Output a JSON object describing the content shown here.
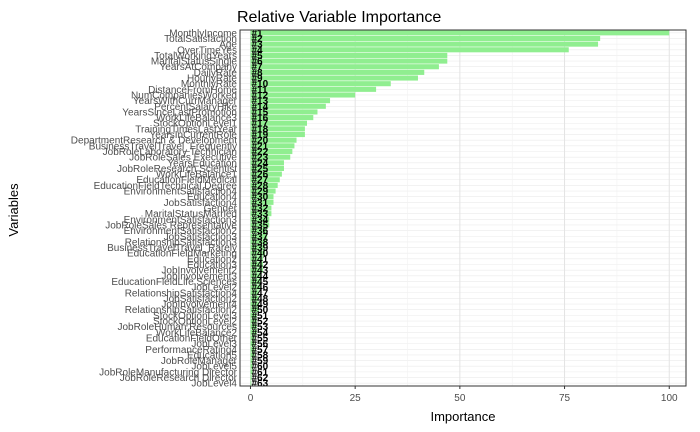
{
  "chart_data": {
    "type": "bar",
    "orientation": "horizontal",
    "title": "Relative Variable Importance",
    "xlabel": "Importance",
    "ylabel": "Variables",
    "xlim": [
      -2.5,
      104
    ],
    "xticks": [
      0,
      25,
      50,
      75,
      100
    ],
    "grid": true,
    "bar_color": "#90ee90",
    "categories": [
      "MonthlyIncome",
      "TotalSatisfaction",
      "Age",
      "OverTimeYes",
      "TotalWorkingYears",
      "MaritalStatusSingle",
      "YearsAtCompany",
      "DailyRate",
      "HourlyRate",
      "MonthlyRate",
      "DistanceFromHome",
      "NumCompaniesWorked",
      "YearsWithCurrManager",
      "PercentSalaryHike",
      "YearsSinceLastPromotion",
      "WorkLifeBalance3",
      "StockOptionLevel1",
      "TrainingTimesLastYear",
      "YearsInCurrentRole",
      "DepartmentResearch & Development",
      "BusinessTravelTravel_Frequently",
      "JobRoleLaboratory Technician",
      "JobRoleSales Executive",
      "YearsEducation",
      "JobRoleResearch Scientist",
      "WorkLifeBalance1",
      "EducationFieldMedical",
      "EducationFieldTechnical Degree",
      "EnvironmentSatisfaction4",
      "Education4",
      "JobSatisfaction4",
      "Gender",
      "MaritalStatusMarried",
      "EnvironmentSatisfaction3",
      "JobRoleSales Representative",
      "EnvironmentSatisfaction2",
      "JobSatisfaction3",
      "RelationshipSatisfaction3",
      "BusinessTravelTravel_Rarely",
      "EducationFieldMarketing",
      "Education2",
      "Education3",
      "JobInvolvement2",
      "JobInvolvement3",
      "EducationFieldLife Sciences",
      "JobLevel2",
      "RelationshipSatisfaction4",
      "JobSatisfaction2",
      "JobInvolvement4",
      "RelationshipSatisfaction2",
      "StockOptionLevel3",
      "StockOptionLevel2",
      "JobRoleHuman Resources",
      "WorkLifeBalance2",
      "EducationFieldOther",
      "JobLevel3",
      "PerformanceRating4",
      "Education5",
      "JobRoleManager",
      "JobLevel5",
      "JobRoleManufacturing Director",
      "JobRoleResearch Director",
      "JobLevel4"
    ],
    "values": [
      100,
      83.5,
      83,
      76,
      47,
      47,
      45,
      41.5,
      40,
      33.5,
      30,
      25,
      19,
      18,
      16,
      15,
      13.5,
      13,
      13,
      11,
      10.5,
      10,
      9.5,
      8,
      8,
      7.5,
      7,
      6.5,
      6,
      5.5,
      5.5,
      5,
      5,
      4.5,
      4.5,
      4,
      4,
      4,
      3.5,
      3.5,
      3,
      3,
      3,
      2.5,
      2.5,
      2.5,
      2,
      2,
      2,
      2,
      1.5,
      1.5,
      1.5,
      1.5,
      1,
      1,
      1,
      1,
      0.5,
      0.5,
      0.5,
      0.3,
      0.2
    ],
    "rank_labels": [
      "#1",
      "#2",
      "#3",
      "#4",
      "#5",
      "#6",
      "#7",
      "#8",
      "#9",
      "#10",
      "#11",
      "#12",
      "#13",
      "#14",
      "#15",
      "#16",
      "#17",
      "#18",
      "#19",
      "#20",
      "#21",
      "#22",
      "#23",
      "#24",
      "#25",
      "#26",
      "#27",
      "#28",
      "#29",
      "#30",
      "#31",
      "#32",
      "#33",
      "#34",
      "#35",
      "#36",
      "#37",
      "#38",
      "#39",
      "#40",
      "#41",
      "#42",
      "#43",
      "#44",
      "#45",
      "#46",
      "#47",
      "#48",
      "#49",
      "#50",
      "#51",
      "#52",
      "#53",
      "#54",
      "#55",
      "#56",
      "#57",
      "#58",
      "#59",
      "#60",
      "#61",
      "#62",
      "#63"
    ]
  }
}
